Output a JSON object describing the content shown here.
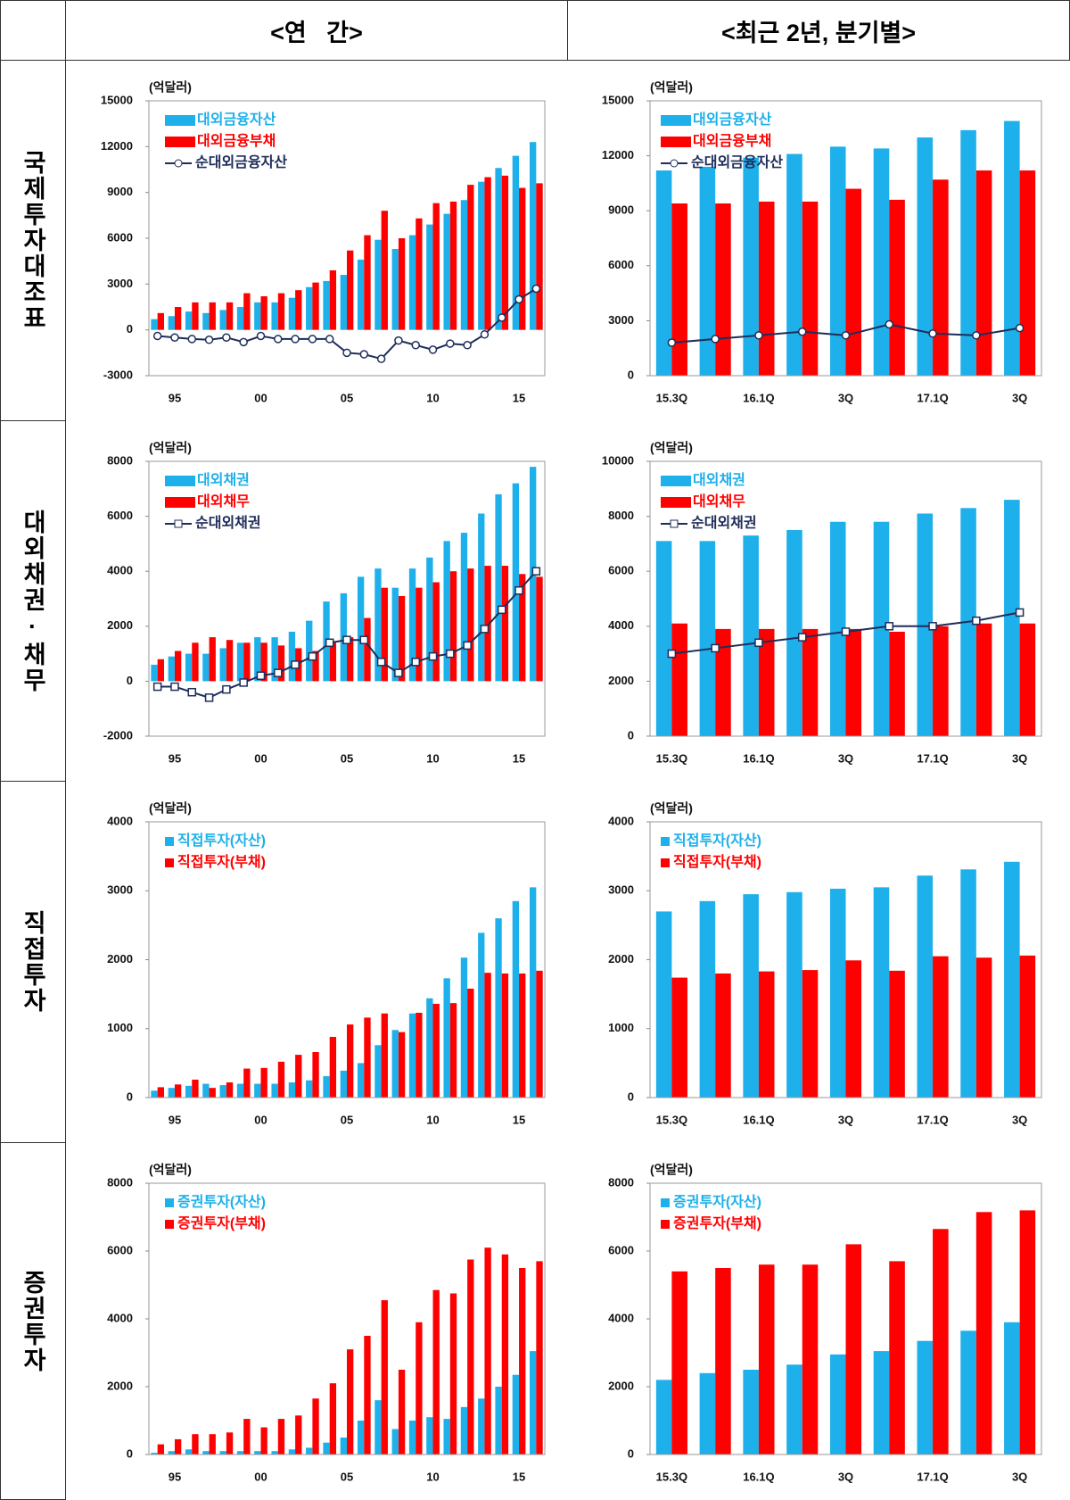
{
  "column_headers": [
    "<연   간>",
    "<최근 2년, 분기별>"
  ],
  "row_labels": [
    "국제투자대조표",
    "대외채권·채무",
    "직접투자",
    "증권투자"
  ],
  "chart_data": [
    {
      "type": "bar",
      "y_label": "(억달러)",
      "legend_style": "box",
      "categories": [
        null,
        "95",
        null,
        null,
        null,
        null,
        "00",
        null,
        null,
        null,
        null,
        "05",
        null,
        null,
        null,
        null,
        "10",
        null,
        null,
        null,
        null,
        "15",
        null
      ],
      "ylim": [
        -3000,
        15000
      ],
      "yticks": [
        -3000,
        0,
        3000,
        6000,
        9000,
        12000,
        15000
      ],
      "series": [
        {
          "name": "대외금융자산",
          "color": "#1eb0ea",
          "values": [
            700,
            900,
            1200,
            1100,
            1300,
            1500,
            1800,
            1800,
            2100,
            2800,
            3200,
            3600,
            4600,
            5900,
            5300,
            6200,
            6900,
            7600,
            8500,
            9700,
            10600,
            11400,
            12300
          ]
        },
        {
          "name": "대외금융부채",
          "color": "#ff0000",
          "values": [
            1100,
            1500,
            1800,
            1800,
            1800,
            2400,
            2200,
            2400,
            2600,
            3100,
            3900,
            5200,
            6200,
            7800,
            6000,
            7300,
            8300,
            8400,
            9500,
            10000,
            10100,
            9300,
            9600
          ]
        },
        {
          "name": "순대외금융자산",
          "color": "#1f2d5a",
          "type": "line",
          "marker": "circle",
          "values": [
            -400,
            -500,
            -600,
            -650,
            -500,
            -800,
            -400,
            -600,
            -600,
            -600,
            -600,
            -1500,
            -1600,
            -1900,
            -700,
            -1000,
            -1300,
            -900,
            -1000,
            -300,
            800,
            2000,
            2700
          ]
        }
      ]
    },
    {
      "type": "bar",
      "y_label": "(억달러)",
      "legend_style": "box",
      "categories": [
        "15.3Q",
        null,
        "16.1Q",
        null,
        "3Q",
        null,
        "17.1Q",
        null,
        "3Q"
      ],
      "ylim": [
        0,
        15000
      ],
      "yticks": [
        0,
        3000,
        6000,
        9000,
        12000,
        15000
      ],
      "series": [
        {
          "name": "대외금융자산",
          "color": "#1eb0ea",
          "values": [
            11200,
            11400,
            11900,
            12100,
            12500,
            12400,
            13000,
            13400,
            13900
          ]
        },
        {
          "name": "대외금융부채",
          "color": "#ff0000",
          "values": [
            9400,
            9400,
            9500,
            9500,
            10200,
            9600,
            10700,
            11200,
            11200
          ]
        },
        {
          "name": "순대외금융자산",
          "color": "#1f2d5a",
          "type": "line",
          "marker": "circle",
          "values": [
            1800,
            2000,
            2200,
            2400,
            2200,
            2800,
            2300,
            2200,
            2600
          ]
        }
      ]
    },
    {
      "type": "bar",
      "y_label": "(억달러)",
      "legend_style": "box",
      "categories": [
        null,
        "95",
        null,
        null,
        null,
        null,
        "00",
        null,
        null,
        null,
        null,
        "05",
        null,
        null,
        null,
        null,
        "10",
        null,
        null,
        null,
        null,
        "15",
        null
      ],
      "ylim": [
        -2000,
        8000
      ],
      "yticks": [
        -2000,
        0,
        2000,
        4000,
        6000,
        8000
      ],
      "series": [
        {
          "name": "대외채권",
          "color": "#1eb0ea",
          "values": [
            600,
            900,
            1000,
            1000,
            1200,
            1400,
            1600,
            1600,
            1800,
            2200,
            2900,
            3200,
            3800,
            4100,
            3400,
            4100,
            4500,
            5100,
            5400,
            6100,
            6800,
            7200,
            7800
          ]
        },
        {
          "name": "대외채무",
          "color": "#ff0000",
          "values": [
            800,
            1100,
            1400,
            1600,
            1500,
            1400,
            1400,
            1300,
            1200,
            1100,
            1400,
            1600,
            2300,
            3400,
            3100,
            3400,
            3600,
            4000,
            4100,
            4200,
            4200,
            3900,
            3800
          ]
        },
        {
          "name": "순대외채권",
          "color": "#1f2d5a",
          "type": "line",
          "marker": "square",
          "values": [
            -200,
            -200,
            -400,
            -600,
            -300,
            -50,
            200,
            300,
            600,
            900,
            1400,
            1500,
            1500,
            700,
            300,
            700,
            900,
            1000,
            1300,
            1900,
            2600,
            3300,
            4000
          ]
        }
      ]
    },
    {
      "type": "bar",
      "y_label": "(억달러)",
      "legend_style": "box",
      "categories": [
        "15.3Q",
        null,
        "16.1Q",
        null,
        "3Q",
        null,
        "17.1Q",
        null,
        "3Q"
      ],
      "ylim": [
        0,
        10000
      ],
      "yticks": [
        0,
        2000,
        4000,
        6000,
        8000,
        10000
      ],
      "series": [
        {
          "name": "대외채권",
          "color": "#1eb0ea",
          "values": [
            7100,
            7100,
            7300,
            7500,
            7800,
            7800,
            8100,
            8300,
            8600
          ]
        },
        {
          "name": "대외채무",
          "color": "#ff0000",
          "values": [
            4100,
            3900,
            3900,
            3900,
            3900,
            3800,
            4000,
            4100,
            4100
          ]
        },
        {
          "name": "순대외채권",
          "color": "#1f2d5a",
          "type": "line",
          "marker": "square",
          "values": [
            3000,
            3200,
            3400,
            3600,
            3800,
            4000,
            4000,
            4200,
            4500
          ]
        }
      ]
    },
    {
      "type": "bar",
      "y_label": "(억달러)",
      "legend_style": "square",
      "categories": [
        null,
        "95",
        null,
        null,
        null,
        null,
        "00",
        null,
        null,
        null,
        null,
        "05",
        null,
        null,
        null,
        null,
        "10",
        null,
        null,
        null,
        null,
        "15",
        null
      ],
      "ylim": [
        0,
        4000
      ],
      "yticks": [
        0,
        1000,
        2000,
        3000,
        4000
      ],
      "series": [
        {
          "name": "직접투자(자산)",
          "color": "#1eb0ea",
          "values": [
            100,
            140,
            170,
            200,
            180,
            200,
            200,
            200,
            220,
            250,
            310,
            390,
            500,
            760,
            980,
            1220,
            1440,
            1730,
            2030,
            2390,
            2600,
            2850,
            3050
          ]
        },
        {
          "name": "직접투자(부채)",
          "color": "#ff0000",
          "values": [
            150,
            190,
            260,
            140,
            220,
            420,
            430,
            520,
            620,
            660,
            880,
            1060,
            1160,
            1220,
            950,
            1230,
            1360,
            1370,
            1580,
            1810,
            1800,
            1800,
            1840
          ]
        }
      ]
    },
    {
      "type": "bar",
      "y_label": "(억달러)",
      "legend_style": "square",
      "categories": [
        "15.3Q",
        null,
        "16.1Q",
        null,
        "3Q",
        null,
        "17.1Q",
        null,
        "3Q"
      ],
      "ylim": [
        0,
        4000
      ],
      "yticks": [
        0,
        1000,
        2000,
        3000,
        4000
      ],
      "series": [
        {
          "name": "직접투자(자산)",
          "color": "#1eb0ea",
          "values": [
            2700,
            2850,
            2950,
            2980,
            3030,
            3050,
            3220,
            3310,
            3420
          ]
        },
        {
          "name": "직접투자(부채)",
          "color": "#ff0000",
          "values": [
            1740,
            1800,
            1830,
            1850,
            1990,
            1840,
            2050,
            2030,
            2060
          ]
        }
      ]
    },
    {
      "type": "bar",
      "y_label": "(억달러)",
      "legend_style": "square",
      "categories": [
        null,
        "95",
        null,
        null,
        null,
        null,
        "00",
        null,
        null,
        null,
        null,
        "05",
        null,
        null,
        null,
        null,
        "10",
        null,
        null,
        null,
        null,
        "15",
        null
      ],
      "ylim": [
        0,
        8000
      ],
      "yticks": [
        0,
        2000,
        4000,
        6000,
        8000
      ],
      "series": [
        {
          "name": "증권투자(자산)",
          "color": "#1eb0ea",
          "values": [
            50,
            100,
            150,
            100,
            100,
            100,
            100,
            100,
            150,
            200,
            350,
            500,
            1000,
            1600,
            750,
            1000,
            1100,
            1050,
            1400,
            1650,
            2000,
            2350,
            3050
          ]
        },
        {
          "name": "증권투자(부채)",
          "color": "#ff0000",
          "values": [
            300,
            450,
            600,
            600,
            650,
            1050,
            800,
            1050,
            1150,
            1650,
            2100,
            3100,
            3500,
            4550,
            2500,
            3900,
            4850,
            4750,
            5750,
            6100,
            5900,
            5500,
            5700
          ]
        }
      ]
    },
    {
      "type": "bar",
      "y_label": "(억달러)",
      "legend_style": "square",
      "categories": [
        "15.3Q",
        null,
        "16.1Q",
        null,
        "3Q",
        null,
        "17.1Q",
        null,
        "3Q"
      ],
      "ylim": [
        0,
        8000
      ],
      "yticks": [
        0,
        2000,
        4000,
        6000,
        8000
      ],
      "series": [
        {
          "name": "증권투자(자산)",
          "color": "#1eb0ea",
          "values": [
            2200,
            2400,
            2500,
            2650,
            2950,
            3050,
            3350,
            3650,
            3900
          ]
        },
        {
          "name": "증권투자(부채)",
          "color": "#ff0000",
          "values": [
            5400,
            5500,
            5600,
            5600,
            6200,
            5700,
            6650,
            7150,
            7200
          ]
        }
      ]
    }
  ]
}
